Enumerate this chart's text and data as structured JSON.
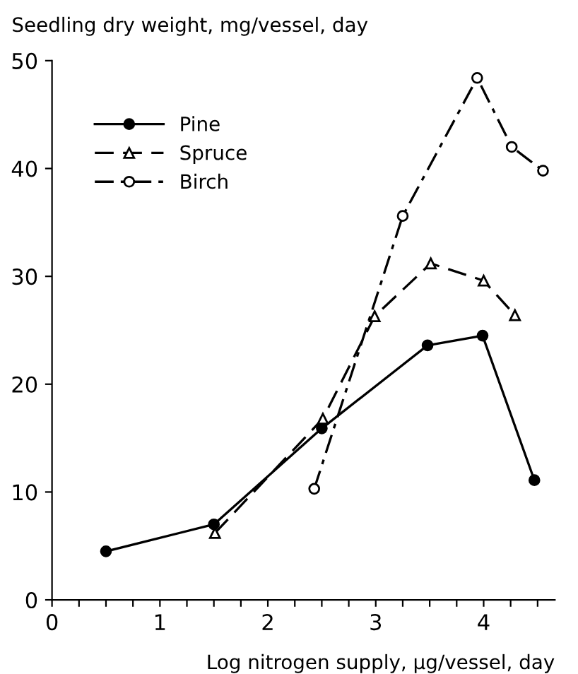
{
  "chart_data": {
    "type": "line",
    "xlabel": "Log nitrogen supply, μg/vessel, day",
    "ylabel": "Seedling dry weight, mg/vessel, day",
    "xlim": [
      0,
      4.66
    ],
    "ylim": [
      0,
      50
    ],
    "xticks": [
      0,
      {
        "value": 0.25,
        "label": null
      },
      {
        "value": 0.5,
        "label": null
      },
      {
        "value": 0.75,
        "label": null
      },
      1,
      {
        "value": 1.25,
        "label": null
      },
      {
        "value": 1.5,
        "label": null
      },
      {
        "value": 1.75,
        "label": null
      },
      2,
      {
        "value": 2.25,
        "label": null
      },
      {
        "value": 2.5,
        "label": null
      },
      {
        "value": 2.75,
        "label": null
      },
      3,
      {
        "value": 3.25,
        "label": null
      },
      {
        "value": 3.5,
        "label": null
      },
      {
        "value": 3.75,
        "label": null
      },
      4,
      {
        "value": 4.25,
        "label": null
      },
      {
        "value": 4.5,
        "label": null
      }
    ],
    "yticks": [
      0,
      10,
      20,
      30,
      40,
      50
    ],
    "grid": false,
    "legend": "top left",
    "series": [
      {
        "name": "Pine",
        "color": "#000000",
        "marker": "circle",
        "line_style": "solid",
        "x": [
          0.5,
          1.5,
          2.5,
          3.48,
          3.99,
          4.47
        ],
        "values": [
          4.5,
          7.0,
          15.9,
          23.6,
          24.5,
          11.1
        ]
      },
      {
        "name": "Spruce",
        "color": "#000000",
        "marker": "triangle",
        "line_style": "dashed",
        "x": [
          1.51,
          2.51,
          2.99,
          3.51,
          4.0,
          4.29
        ],
        "values": [
          6.2,
          16.8,
          26.3,
          31.2,
          29.6,
          26.4
        ]
      },
      {
        "name": "Birch",
        "color": "#000000",
        "marker": "circle",
        "line_style": "dashdot",
        "x": [
          2.43,
          3.25,
          3.94,
          4.26,
          4.55
        ],
        "values": [
          10.3,
          35.6,
          48.4,
          42.0,
          39.8
        ]
      }
    ]
  }
}
